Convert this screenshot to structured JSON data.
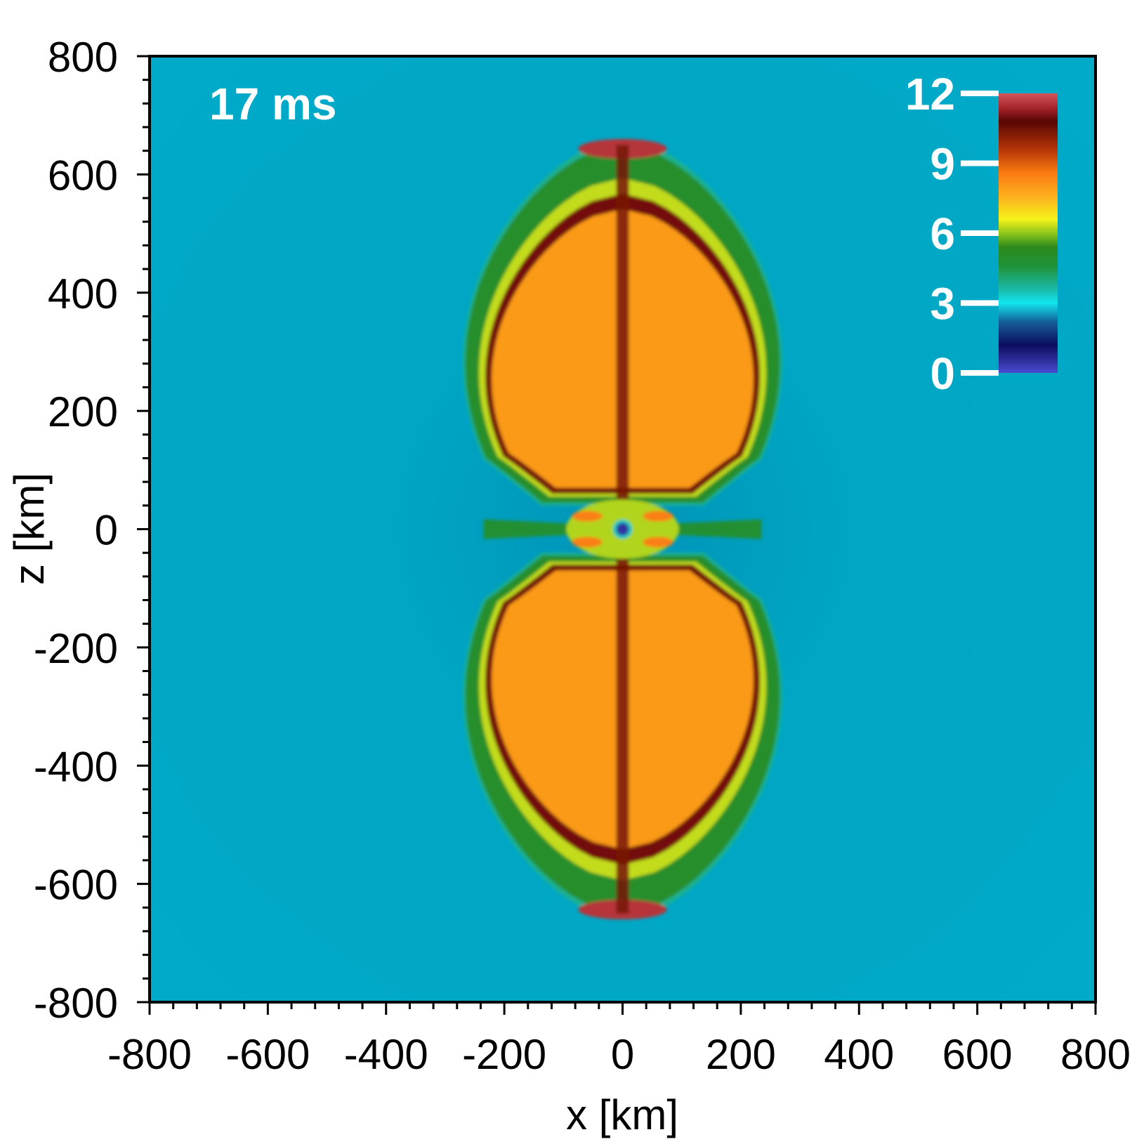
{
  "chart_data": {
    "type": "heatmap",
    "title": "",
    "annotation": "17 ms",
    "xlabel": "x [km]",
    "ylabel": "z [km]",
    "xlim": [
      -800,
      800
    ],
    "ylim": [
      -800,
      800
    ],
    "x_ticks": [
      "-800",
      "-600",
      "-400",
      "-200",
      "0",
      "200",
      "400",
      "600",
      "800"
    ],
    "y_ticks": [
      "800",
      "600",
      "400",
      "200",
      "0",
      "-200",
      "-400",
      "-600",
      "-800"
    ],
    "x_tick_values": [
      -800,
      -600,
      -400,
      -200,
      0,
      200,
      400,
      600,
      800
    ],
    "y_tick_values": [
      800,
      600,
      400,
      200,
      0,
      -200,
      -400,
      -600,
      -800
    ],
    "minor_tick_step": 40,
    "grid": false,
    "background_value": 3.3,
    "structure": {
      "description_values": "bipolar outflow lobes along z-axis",
      "lobe_tip_z": [
        660,
        -660
      ],
      "lobe_max_half_width_x": 270,
      "waist_x_extent": [
        -235,
        235
      ],
      "center_value": 0.5,
      "shell_value": 11,
      "interior_value": 8,
      "outer_layer_value": 5
    },
    "colorbar": {
      "range": [
        0,
        12
      ],
      "ticks": [
        "12",
        "9",
        "6",
        "3",
        "0"
      ],
      "tick_values": [
        12,
        9,
        6,
        3,
        0
      ],
      "placement": "top-right",
      "colors": [
        {
          "value": 0,
          "color": "#4a4ad0"
        },
        {
          "value": 1.2,
          "color": "#0c0c5e"
        },
        {
          "value": 2.2,
          "color": "#14609a"
        },
        {
          "value": 3.0,
          "color": "#11e6ee"
        },
        {
          "value": 3.6,
          "color": "#1ab9a6"
        },
        {
          "value": 4.6,
          "color": "#1f9238"
        },
        {
          "value": 5.4,
          "color": "#2c8a1c"
        },
        {
          "value": 6.0,
          "color": "#8ec61a"
        },
        {
          "value": 6.6,
          "color": "#f6f21a"
        },
        {
          "value": 7.5,
          "color": "#fcb41e"
        },
        {
          "value": 8.6,
          "color": "#fa7a12"
        },
        {
          "value": 9.6,
          "color": "#b43406"
        },
        {
          "value": 10.8,
          "color": "#580604"
        },
        {
          "value": 11.4,
          "color": "#a8262c"
        },
        {
          "value": 12,
          "color": "#d2545a"
        }
      ]
    }
  },
  "colors": {
    "background": "#00a8c6",
    "axes": "#000000",
    "overlay_text": "#ffffff"
  }
}
